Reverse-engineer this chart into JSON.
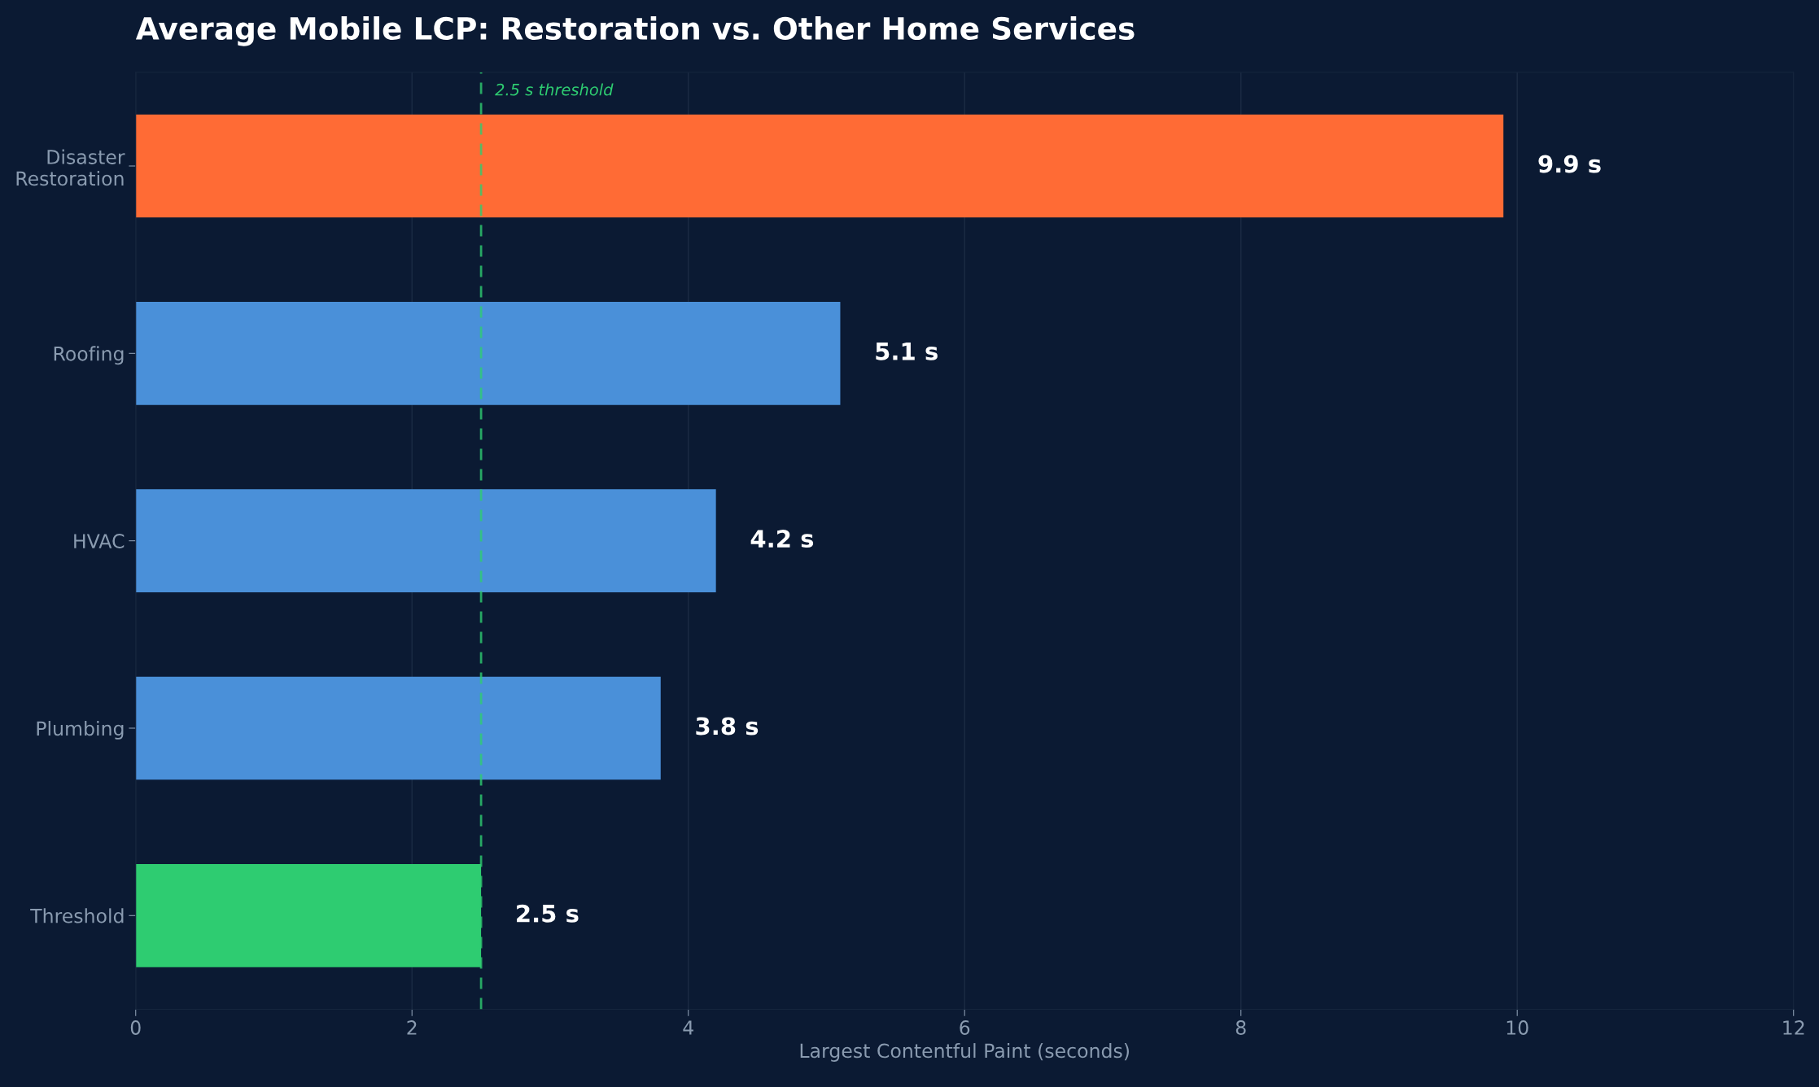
{
  "chart_data": {
    "type": "bar",
    "orientation": "horizontal",
    "title": "Average Mobile LCP: Restoration vs. Other Home Services",
    "xlabel": "Largest Contentful Paint (seconds)",
    "categories": [
      "Disaster\nRestoration",
      "Roofing",
      "HVAC",
      "Plumbing",
      "Threshold"
    ],
    "values": [
      9.9,
      5.1,
      4.2,
      3.8,
      2.5
    ],
    "colors": [
      "#ff6b35",
      "#4a90d9",
      "#4a90d9",
      "#4a90d9",
      "#2ecc71"
    ],
    "value_labels": [
      "9.9 s",
      "5.1 s",
      "4.2 s",
      "3.8 s",
      "2.5 s"
    ],
    "xlim": [
      0,
      12
    ],
    "xticks": [
      0,
      2,
      4,
      6,
      8,
      10,
      12
    ],
    "ref_lines": [
      {
        "axis": "x",
        "value": 2.5,
        "label": "2.5 s threshold",
        "color": "#2ecc71",
        "line_style": "dashed"
      }
    ],
    "grid": "x",
    "legend": false
  }
}
